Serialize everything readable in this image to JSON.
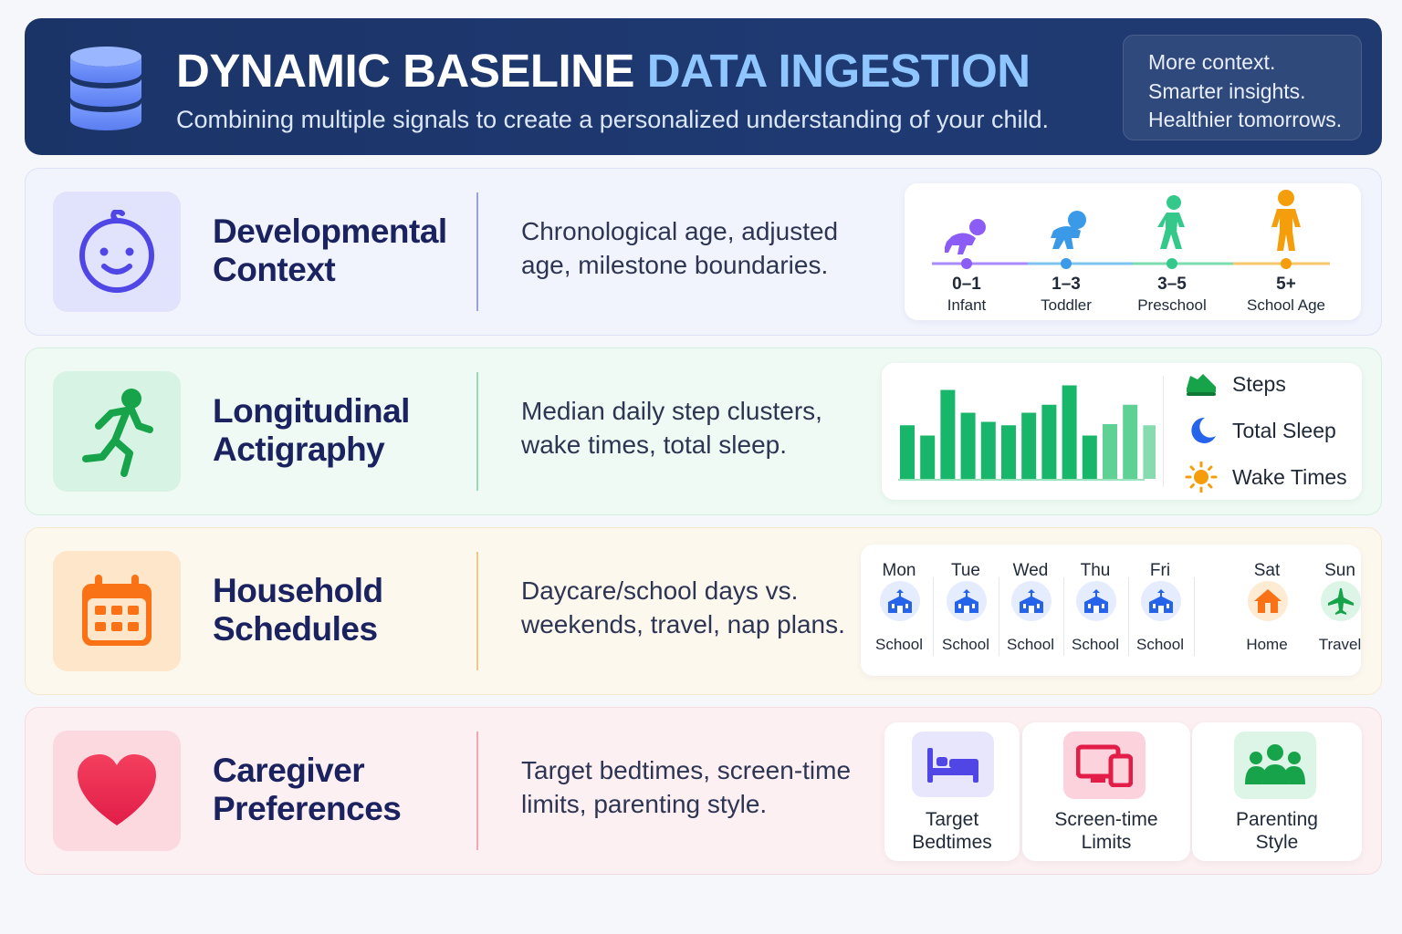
{
  "header": {
    "title_main": "DYNAMIC BASELINE",
    "title_accent": "DATA INGESTION",
    "subtitle": "Combining multiple signals to create a personalized understanding of your child.",
    "tagline": [
      "More context.",
      "Smarter insights.",
      "Healthier tomorrows."
    ],
    "icon": "database-icon"
  },
  "rows": [
    {
      "title_line1": "Developmental",
      "title_line2": "Context",
      "desc_line1": "Chronological age, adjusted",
      "desc_line2": "age, milestone boundaries.",
      "icon": "baby-face-icon"
    },
    {
      "title_line1": "Longitudinal",
      "title_line2": "Actigraphy",
      "desc_line1": "Median daily step clusters,",
      "desc_line2": "wake times, total sleep.",
      "icon": "running-person-icon"
    },
    {
      "title_line1": "Household",
      "title_line2": "Schedules",
      "desc_line1": "Daycare/school days vs.",
      "desc_line2": "weekends, travel, nap plans.",
      "icon": "calendar-icon"
    },
    {
      "title_line1": "Caregiver",
      "title_line2": "Preferences",
      "desc_line1": "Target bedtimes, screen-time",
      "desc_line2": "limits, parenting style.",
      "icon": "heart-icon"
    }
  ],
  "age_stages": [
    {
      "range": "0–1",
      "label": "Infant",
      "color": "#8b5cf6"
    },
    {
      "range": "1–3",
      "label": "Toddler",
      "color": "#3b9ae8"
    },
    {
      "range": "3–5",
      "label": "Preschool",
      "color": "#34c98a"
    },
    {
      "range": "5+",
      "label": "School Age",
      "color": "#f59e0b"
    }
  ],
  "actigraphy": {
    "bars": [
      0.47,
      0.38,
      0.78,
      0.58,
      0.5,
      0.47,
      0.58,
      0.65,
      0.82,
      0.38,
      0.48,
      0.65,
      0.47
    ],
    "legend": [
      {
        "label": "Steps",
        "icon": "sneaker-icon"
      },
      {
        "label": "Total Sleep",
        "icon": "moon-icon"
      },
      {
        "label": "Wake Times",
        "icon": "sun-icon"
      }
    ]
  },
  "week": [
    {
      "day": "Mon",
      "label": "School",
      "icon": "school-icon"
    },
    {
      "day": "Tue",
      "label": "School",
      "icon": "school-icon"
    },
    {
      "day": "Wed",
      "label": "School",
      "icon": "school-icon"
    },
    {
      "day": "Thu",
      "label": "School",
      "icon": "school-icon"
    },
    {
      "day": "Fri",
      "label": "School",
      "icon": "school-icon"
    },
    {
      "day": "Sat",
      "label": "Home",
      "icon": "house-icon"
    },
    {
      "day": "Sun",
      "label": "Travel",
      "icon": "airplane-icon"
    }
  ],
  "preferences": [
    {
      "line1": "Target",
      "line2": "Bedtimes",
      "icon": "bed-icon"
    },
    {
      "line1": "Screen-time",
      "line2": "Limits",
      "icon": "devices-icon"
    },
    {
      "line1": "Parenting",
      "line2": "Style",
      "icon": "family-icon"
    }
  ]
}
